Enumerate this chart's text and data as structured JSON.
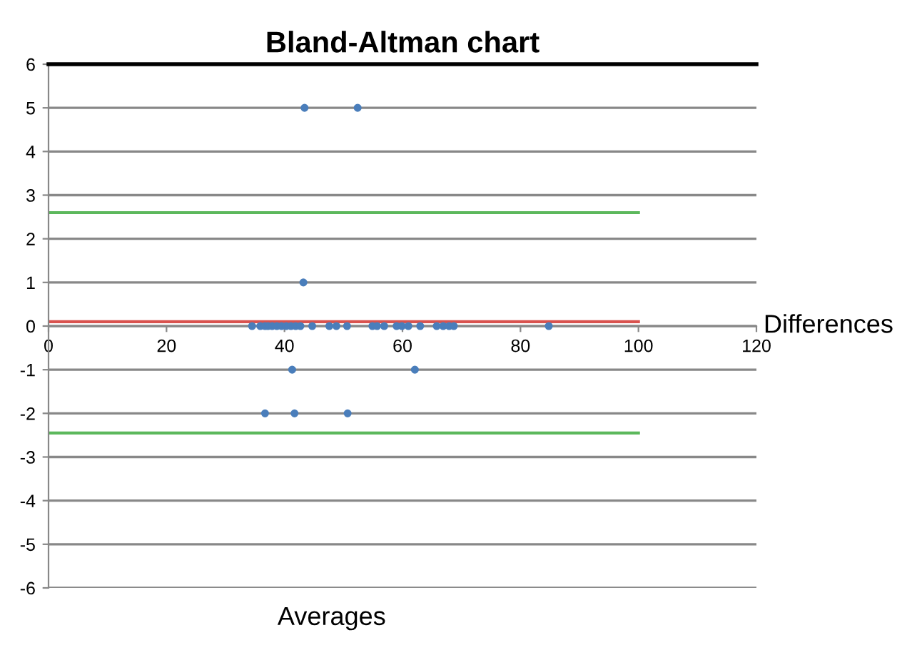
{
  "chart_data": {
    "type": "scatter",
    "title": "Bland-Altman chart",
    "xlabel": "Averages",
    "ylabel": "Differences",
    "xlim": [
      0,
      120
    ],
    "xticks": [
      0,
      20,
      40,
      60,
      80,
      100,
      120
    ],
    "ylim": [
      -6,
      6
    ],
    "yticks": [
      -6,
      -5,
      -4,
      -3,
      -2,
      -1,
      0,
      1,
      2,
      3,
      4,
      5,
      6
    ],
    "grid": "y",
    "series": [
      {
        "marker": "circle",
        "color": "#4a7ebb",
        "x": [
          43.4,
          52.4,
          43.2,
          41.3,
          62.1,
          36.7,
          41.7,
          50.7,
          34.5,
          35.9,
          36.7,
          37.2,
          37.9,
          38.7,
          39.5,
          40.3,
          41.1,
          41.9,
          42.7,
          44.7,
          47.6,
          48.8,
          50.6,
          54.9,
          55.7,
          56.9,
          59.0,
          59.9,
          61.0,
          63.0,
          65.8,
          66.9,
          67.9,
          68.7,
          84.8
        ],
        "values": [
          5,
          5,
          1,
          -1,
          -1,
          -2,
          -2,
          -2,
          0,
          0,
          0,
          0,
          0,
          0,
          0,
          0,
          0,
          0,
          0,
          0,
          0,
          0,
          0,
          0,
          0,
          0,
          0,
          0,
          0,
          0,
          0,
          0,
          0,
          0,
          0
        ]
      },
      {
        "type": "line",
        "marker": "none",
        "color": "#5cb85c",
        "x": [
          0,
          100
        ],
        "values": [
          2.6,
          2.6
        ]
      },
      {
        "type": "line",
        "marker": "none",
        "color": "#5cb85c",
        "x": [
          0,
          100
        ],
        "values": [
          -2.45,
          -2.45
        ]
      },
      {
        "type": "line",
        "marker": "none",
        "color": "#d9534f",
        "x": [
          0,
          100
        ],
        "values": [
          0.1,
          0.1
        ]
      }
    ]
  }
}
